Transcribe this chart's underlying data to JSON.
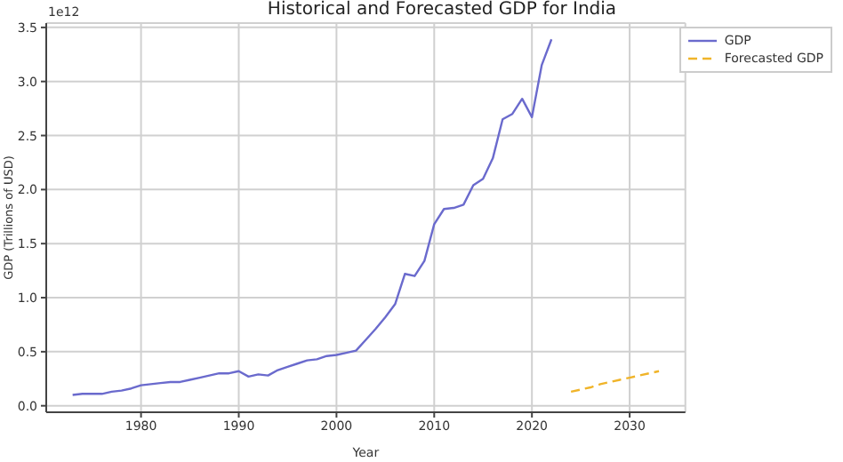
{
  "chart_data": {
    "type": "line",
    "title": "Historical and Forecasted GDP for India",
    "xlabel": "Year",
    "ylabel": "GDP (Trillions of USD)",
    "annotations": [
      "1e12"
    ],
    "series": [
      {
        "name": "GDP",
        "color": "#6a6acd",
        "line_style": "solid",
        "x": [
          1973,
          1974,
          1975,
          1976,
          1977,
          1978,
          1979,
          1980,
          1981,
          1982,
          1983,
          1984,
          1985,
          1986,
          1987,
          1988,
          1989,
          1990,
          1991,
          1992,
          1993,
          1994,
          1995,
          1996,
          1997,
          1998,
          1999,
          2000,
          2001,
          2002,
          2003,
          2004,
          2005,
          2006,
          2007,
          2008,
          2009,
          2010,
          2011,
          2012,
          2013,
          2014,
          2015,
          2016,
          2017,
          2018,
          2019,
          2020,
          2021,
          2022
        ],
        "values": [
          0.1,
          0.11,
          0.11,
          0.11,
          0.13,
          0.14,
          0.16,
          0.19,
          0.2,
          0.21,
          0.22,
          0.22,
          0.24,
          0.26,
          0.28,
          0.3,
          0.3,
          0.32,
          0.27,
          0.29,
          0.28,
          0.33,
          0.36,
          0.39,
          0.42,
          0.43,
          0.46,
          0.47,
          0.49,
          0.51,
          0.61,
          0.71,
          0.82,
          0.94,
          1.22,
          1.2,
          1.34,
          1.68,
          1.82,
          1.83,
          1.86,
          2.04,
          2.1,
          2.29,
          2.65,
          2.7,
          2.84,
          2.67,
          3.15,
          3.39
        ]
      },
      {
        "name": "Forecasted GDP",
        "color": "#f0b429",
        "line_style": "dashed",
        "x": [
          2024,
          2025,
          2026,
          2027,
          2028,
          2029,
          2030,
          2031,
          2032,
          2033
        ],
        "values": [
          0.13,
          0.15,
          0.17,
          0.2,
          0.22,
          0.24,
          0.26,
          0.28,
          0.3,
          0.32
        ]
      }
    ],
    "xlim": [
      1970.3,
      2035.7
    ],
    "xticks": [
      1980,
      1990,
      2000,
      2010,
      2020,
      2030
    ],
    "ylim": [
      -0.06,
      3.54
    ],
    "yticks": [
      {
        "value": 0,
        "label": "0.0"
      },
      {
        "value": 0.5,
        "label": "0.5"
      },
      {
        "value": 1,
        "label": "1.0"
      },
      {
        "value": 1.5,
        "label": "1.5"
      },
      {
        "value": 2,
        "label": "2.0"
      },
      {
        "value": 2.5,
        "label": "2.5"
      },
      {
        "value": 3,
        "label": "3.0"
      },
      {
        "value": 3.5,
        "label": "3.5"
      }
    ],
    "grid": true,
    "legend": "top right",
    "marker": "none"
  }
}
